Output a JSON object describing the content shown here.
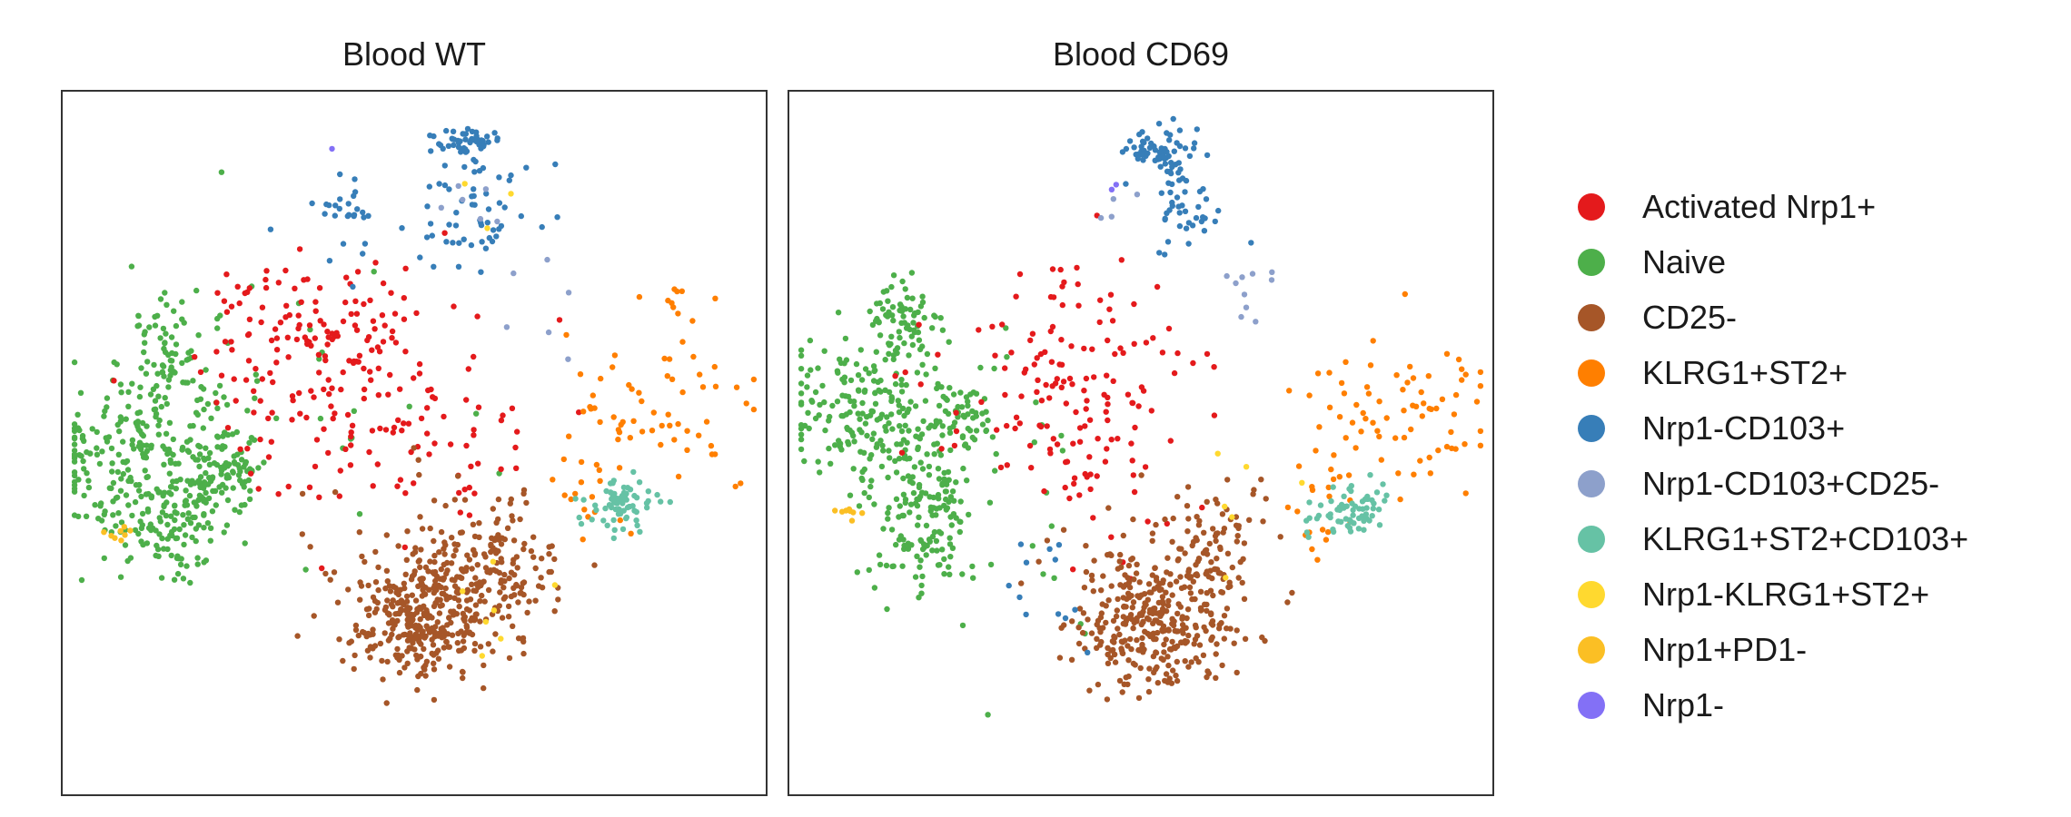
{
  "chart_data": {
    "type": "scatter",
    "axes_visible": false,
    "legend_placement": "right",
    "panels": [
      {
        "title": "Blood WT",
        "xlim": [
          -55,
          55
        ],
        "ylim": [
          -55,
          55
        ],
        "clusters": [
          {
            "name": "Naive",
            "n": 520,
            "blobs": [
              {
                "cx": -42,
                "cy": -2,
                "sx": 8.5,
                "sy": 7.5,
                "w": 0.46
              },
              {
                "cx": -38,
                "cy": 14,
                "sx": 3.5,
                "sy": 5,
                "w": 0.14
              },
              {
                "cx": -30,
                "cy": -4,
                "sx": 3.5,
                "sy": 3,
                "w": 0.16
              },
              {
                "cx": -38,
                "cy": -13,
                "sx": 5,
                "sy": 4.5,
                "w": 0.18
              },
              {
                "cx": -22,
                "cy": 6,
                "sx": 12,
                "sy": 12,
                "w": 0.06
              }
            ]
          },
          {
            "name": "Activated Nrp1+",
            "n": 240,
            "blobs": [
              {
                "cx": -12,
                "cy": 10,
                "sx": 12,
                "sy": 9,
                "w": 0.65
              },
              {
                "cx": -17,
                "cy": 19,
                "sx": 7,
                "sy": 5,
                "w": 0.2
              },
              {
                "cx": 3,
                "cy": 2,
                "sx": 8,
                "sy": 10,
                "w": 0.15
              }
            ]
          },
          {
            "name": "CD25-",
            "n": 520,
            "blobs": [
              {
                "cx": 1,
                "cy": -28,
                "sx": 5.5,
                "sy": 4.5,
                "w": 0.55
              },
              {
                "cx": 12,
                "cy": -20,
                "sx": 5,
                "sy": 5,
                "w": 0.3
              },
              {
                "cx": 2,
                "cy": -19,
                "sx": 10,
                "sy": 7,
                "w": 0.15
              }
            ]
          },
          {
            "name": "KLRG1+ST2+",
            "n": 85,
            "blobs": [
              {
                "cx": 38,
                "cy": 4,
                "sx": 8.5,
                "sy": 6,
                "w": 0.75
              },
              {
                "cx": 42,
                "cy": 22,
                "sx": 3,
                "sy": 2,
                "w": 0.1
              },
              {
                "cx": 27,
                "cy": -10,
                "sx": 3,
                "sy": 4,
                "w": 0.15
              }
            ]
          },
          {
            "name": "Nrp1-CD103+",
            "n": 135,
            "blobs": [
              {
                "cx": 8,
                "cy": 47,
                "sx": 2.8,
                "sy": 1,
                "w": 0.38
              },
              {
                "cx": 10,
                "cy": 37,
                "sx": 5,
                "sy": 4.5,
                "w": 0.42
              },
              {
                "cx": -10,
                "cy": 36,
                "sx": 3,
                "sy": 3,
                "w": 0.2
              }
            ]
          },
          {
            "name": "Nrp1-CD103+CD25-",
            "n": 12,
            "blobs": [
              {
                "cx": 20,
                "cy": 26,
                "sx": 5,
                "sy": 5,
                "w": 0.6
              },
              {
                "cx": 10,
                "cy": 37,
                "sx": 3,
                "sy": 3,
                "w": 0.4
              }
            ]
          },
          {
            "name": "KLRG1+ST2+CD103+",
            "n": 70,
            "blobs": [
              {
                "cx": 32,
                "cy": -10,
                "sx": 2.6,
                "sy": 2,
                "w": 1.0
              }
            ]
          },
          {
            "name": "Nrp1-KLRG1+ST2+",
            "n": 10,
            "blobs": [
              {
                "cx": 12,
                "cy": -25,
                "sx": 7,
                "sy": 4,
                "w": 0.7
              },
              {
                "cx": 13,
                "cy": 36,
                "sx": 4,
                "sy": 4,
                "w": 0.3
              }
            ]
          },
          {
            "name": "Nrp1+PD1-",
            "n": 8,
            "blobs": [
              {
                "cx": -46,
                "cy": -14,
                "sx": 1.2,
                "sy": 1.2,
                "w": 1.0
              }
            ]
          },
          {
            "name": "Nrp1-",
            "n": 1,
            "blobs": [
              {
                "cx": -13,
                "cy": 46,
                "sx": 0.3,
                "sy": 0.3,
                "w": 1.0
              }
            ]
          }
        ]
      },
      {
        "title": "Blood CD69",
        "xlim": [
          -55,
          55
        ],
        "ylim": [
          -55,
          55
        ],
        "clusters": [
          {
            "name": "Naive",
            "n": 500,
            "blobs": [
              {
                "cx": -43,
                "cy": 5,
                "sx": 7,
                "sy": 6,
                "w": 0.4
              },
              {
                "cx": -37,
                "cy": 18,
                "sx": 3,
                "sy": 4,
                "w": 0.15
              },
              {
                "cx": -34,
                "cy": -12,
                "sx": 4,
                "sy": 6,
                "w": 0.3
              },
              {
                "cx": -28,
                "cy": 4,
                "sx": 3,
                "sy": 3,
                "w": 0.1
              },
              {
                "cx": -20,
                "cy": -10,
                "sx": 8,
                "sy": 10,
                "w": 0.05
              }
            ]
          },
          {
            "name": "Activated Nrp1+",
            "n": 160,
            "blobs": [
              {
                "cx": -12,
                "cy": 10,
                "sx": 10,
                "sy": 9,
                "w": 0.8
              },
              {
                "cx": -5,
                "cy": -5,
                "sx": 8,
                "sy": 8,
                "w": 0.2
              }
            ]
          },
          {
            "name": "CD25-",
            "n": 440,
            "blobs": [
              {
                "cx": 2,
                "cy": -29,
                "sx": 5.5,
                "sy": 4.5,
                "w": 0.6
              },
              {
                "cx": 10,
                "cy": -18,
                "sx": 4,
                "sy": 6,
                "w": 0.25
              },
              {
                "cx": 0,
                "cy": -20,
                "sx": 9,
                "sy": 7,
                "w": 0.15
              }
            ]
          },
          {
            "name": "KLRG1+ST2+",
            "n": 95,
            "blobs": [
              {
                "cx": 40,
                "cy": 4,
                "sx": 8,
                "sy": 7,
                "w": 0.8
              },
              {
                "cx": 27,
                "cy": -8,
                "sx": 3,
                "sy": 4,
                "w": 0.2
              }
            ]
          },
          {
            "name": "Nrp1-CD103+",
            "n": 120,
            "blobs": [
              {
                "cx": 3,
                "cy": 46,
                "sx": 2.5,
                "sy": 1.5,
                "w": 0.45
              },
              {
                "cx": 6,
                "cy": 38,
                "sx": 3,
                "sy": 5,
                "w": 0.45
              },
              {
                "cx": -14,
                "cy": -21,
                "sx": 4,
                "sy": 5,
                "w": 0.1
              }
            ]
          },
          {
            "name": "Nrp1-CD103+CD25-",
            "n": 14,
            "blobs": [
              {
                "cx": 18,
                "cy": 24,
                "sx": 2,
                "sy": 4,
                "w": 0.7
              },
              {
                "cx": -3,
                "cy": 38,
                "sx": 3,
                "sy": 3,
                "w": 0.3
              }
            ]
          },
          {
            "name": "KLRG1+ST2+CD103+",
            "n": 65,
            "blobs": [
              {
                "cx": 32,
                "cy": -11,
                "sx": 3,
                "sy": 2,
                "w": 1.0
              }
            ]
          },
          {
            "name": "Nrp1-KLRG1+ST2+",
            "n": 6,
            "blobs": [
              {
                "cx": 15,
                "cy": -8,
                "sx": 6,
                "sy": 6,
                "w": 1.0
              }
            ]
          },
          {
            "name": "Nrp1+PD1-",
            "n": 8,
            "blobs": [
              {
                "cx": -46,
                "cy": -11,
                "sx": 1,
                "sy": 1,
                "w": 1.0
              }
            ]
          },
          {
            "name": "Nrp1-",
            "n": 2,
            "blobs": [
              {
                "cx": -4,
                "cy": 40,
                "sx": 0.3,
                "sy": 0.3,
                "w": 1.0
              }
            ]
          }
        ]
      }
    ],
    "legend": [
      {
        "label": "Activated Nrp1+",
        "color": "#e41a1c"
      },
      {
        "label": "Naive",
        "color": "#4daf4a"
      },
      {
        "label": "CD25-",
        "color": "#a65628"
      },
      {
        "label": "KLRG1+ST2+",
        "color": "#ff7f00"
      },
      {
        "label": "Nrp1-CD103+",
        "color": "#377eb8"
      },
      {
        "label": "Nrp1-CD103+CD25-",
        "color": "#8da0cb"
      },
      {
        "label": "KLRG1+ST2+CD103+",
        "color": "#66c2a5"
      },
      {
        "label": "Nrp1-KLRG1+ST2+",
        "color": "#ffd92f"
      },
      {
        "label": "Nrp1+PD1-",
        "color": "#fbbf24"
      },
      {
        "label": "Nrp1-",
        "color": "#8370f6"
      }
    ]
  }
}
